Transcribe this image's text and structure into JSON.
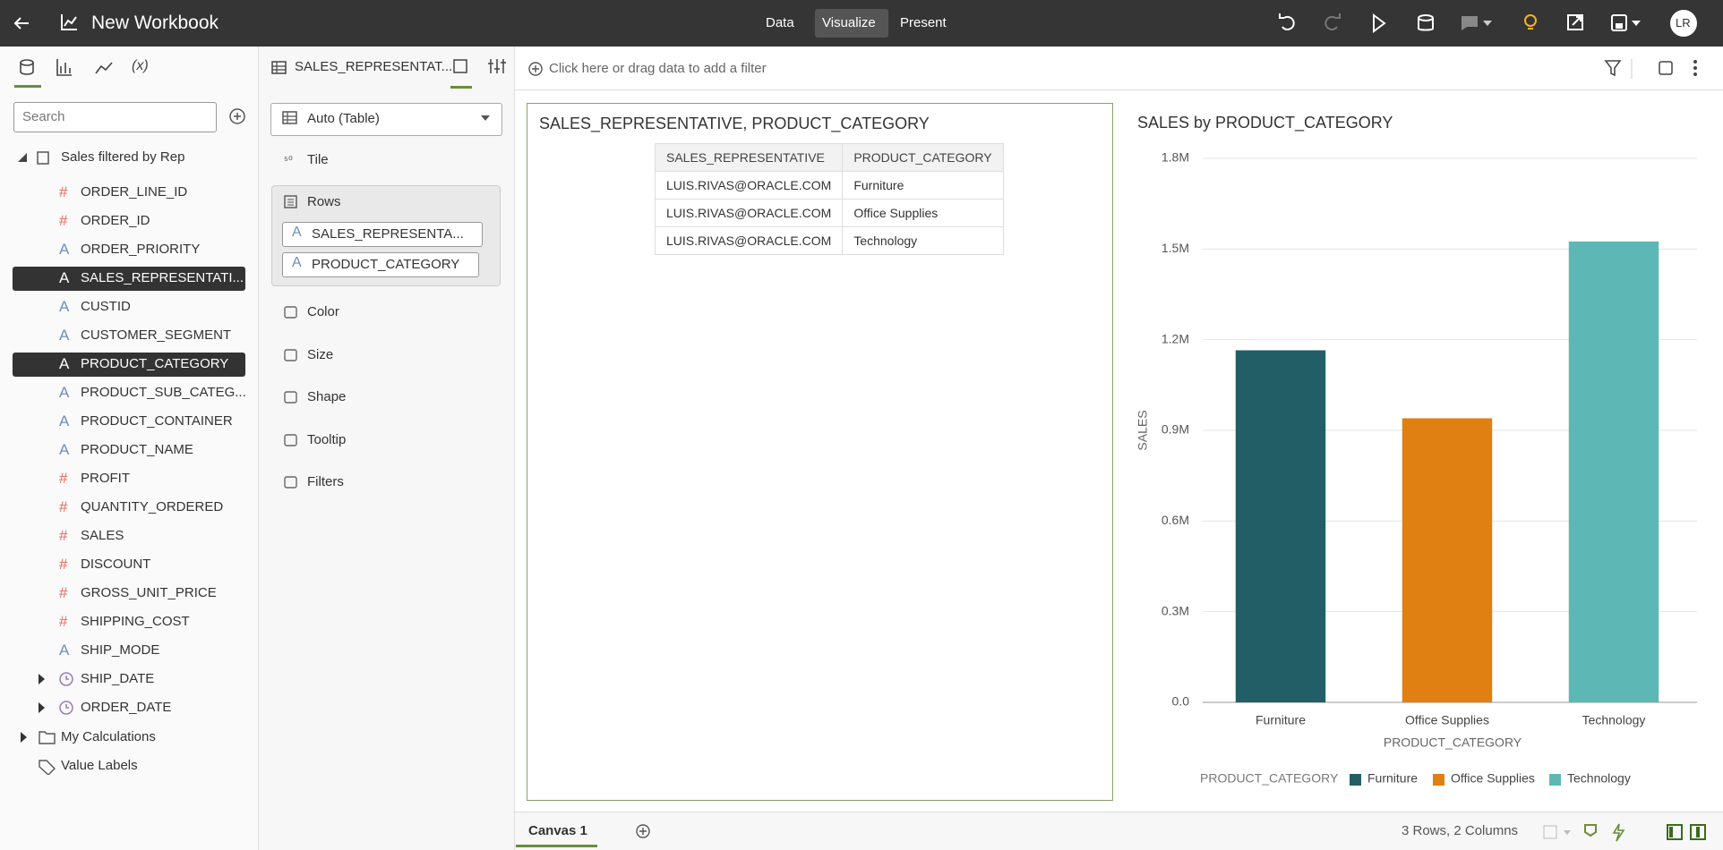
{
  "header": {
    "title": "New Workbook",
    "tabs": [
      {
        "label": "Data"
      },
      {
        "label": "Visualize",
        "active": true
      },
      {
        "label": "Present"
      }
    ],
    "avatar": "LR"
  },
  "data_panel": {
    "calc_tab": "(x)",
    "search_placeholder": "Search",
    "dataset": "Sales filtered by Rep",
    "fields": [
      {
        "icon": "#",
        "label": "ORDER_LINE_ID"
      },
      {
        "icon": "#",
        "label": "ORDER_ID"
      },
      {
        "icon": "A",
        "label": "ORDER_PRIORITY"
      },
      {
        "icon": "A",
        "label": "SALES_REPRESENTATI...",
        "selected": true
      },
      {
        "icon": "A",
        "label": "CUSTID"
      },
      {
        "icon": "A",
        "label": "CUSTOMER_SEGMENT"
      },
      {
        "icon": "A",
        "label": "PRODUCT_CATEGORY",
        "selected": true
      },
      {
        "icon": "A",
        "label": "PRODUCT_SUB_CATEG..."
      },
      {
        "icon": "A",
        "label": "PRODUCT_CONTAINER"
      },
      {
        "icon": "A",
        "label": "PRODUCT_NAME"
      },
      {
        "icon": "#",
        "label": "PROFIT"
      },
      {
        "icon": "#",
        "label": "QUANTITY_ORDERED"
      },
      {
        "icon": "#",
        "label": "SALES"
      },
      {
        "icon": "#",
        "label": "DISCOUNT"
      },
      {
        "icon": "#",
        "label": "GROSS_UNIT_PRICE"
      },
      {
        "icon": "#",
        "label": "SHIPPING_COST"
      },
      {
        "icon": "A",
        "label": "SHIP_MODE"
      },
      {
        "label": "SHIP_DATE",
        "date": true
      },
      {
        "label": "ORDER_DATE",
        "date": true
      }
    ],
    "folders": [
      "My Calculations",
      "Value Labels"
    ]
  },
  "grammar_panel": {
    "source": "SALES_REPRESENTAT...",
    "viz_type": "Auto (Table)",
    "tile": "Tile",
    "rows_label": "Rows",
    "rows": [
      {
        "icon": "A",
        "label": "SALES_REPRESENTA..."
      },
      {
        "icon": "A",
        "label": "PRODUCT_CATEGORY"
      }
    ],
    "sections": [
      "Color",
      "Size",
      "Shape",
      "Tooltip",
      "Filters"
    ]
  },
  "filter_bar": {
    "placeholder": "Click here or drag data to add a filter"
  },
  "table": {
    "title": "SALES_REPRESENTATIVE, PRODUCT_CATEGORY",
    "columns": [
      "SALES_REPRESENTATIVE",
      "PRODUCT_CATEGORY"
    ],
    "rows": [
      [
        "LUIS.RIVAS@ORACLE.COM",
        "Furniture"
      ],
      [
        "LUIS.RIVAS@ORACLE.COM",
        "Office Supplies"
      ],
      [
        "LUIS.RIVAS@ORACLE.COM",
        "Technology"
      ]
    ]
  },
  "chart_data": {
    "type": "bar",
    "title": "SALES by PRODUCT_CATEGORY",
    "x_label": "PRODUCT_CATEGORY",
    "y_label": "SALES",
    "categories": [
      "Furniture",
      "Office Supplies",
      "Technology"
    ],
    "values": [
      1165000,
      940000,
      1525000
    ],
    "colors": [
      "#225e66",
      "#e07f12",
      "#5db8b5"
    ],
    "ylim": [
      0,
      1800000
    ],
    "yticks": [
      {
        "value": 0,
        "label": "0.0"
      },
      {
        "value": 300000,
        "label": "0.3M"
      },
      {
        "value": 600000,
        "label": "0.6M"
      },
      {
        "value": 900000,
        "label": "0.9M"
      },
      {
        "value": 1200000,
        "label": "1.2M"
      },
      {
        "value": 1500000,
        "label": "1.5M"
      },
      {
        "value": 1800000,
        "label": "1.8M"
      }
    ],
    "grid": true,
    "legend_title": "PRODUCT_CATEGORY",
    "legend": "bottom"
  },
  "footer": {
    "canvas": "Canvas 1",
    "status": "3 Rows, 2 Columns"
  }
}
